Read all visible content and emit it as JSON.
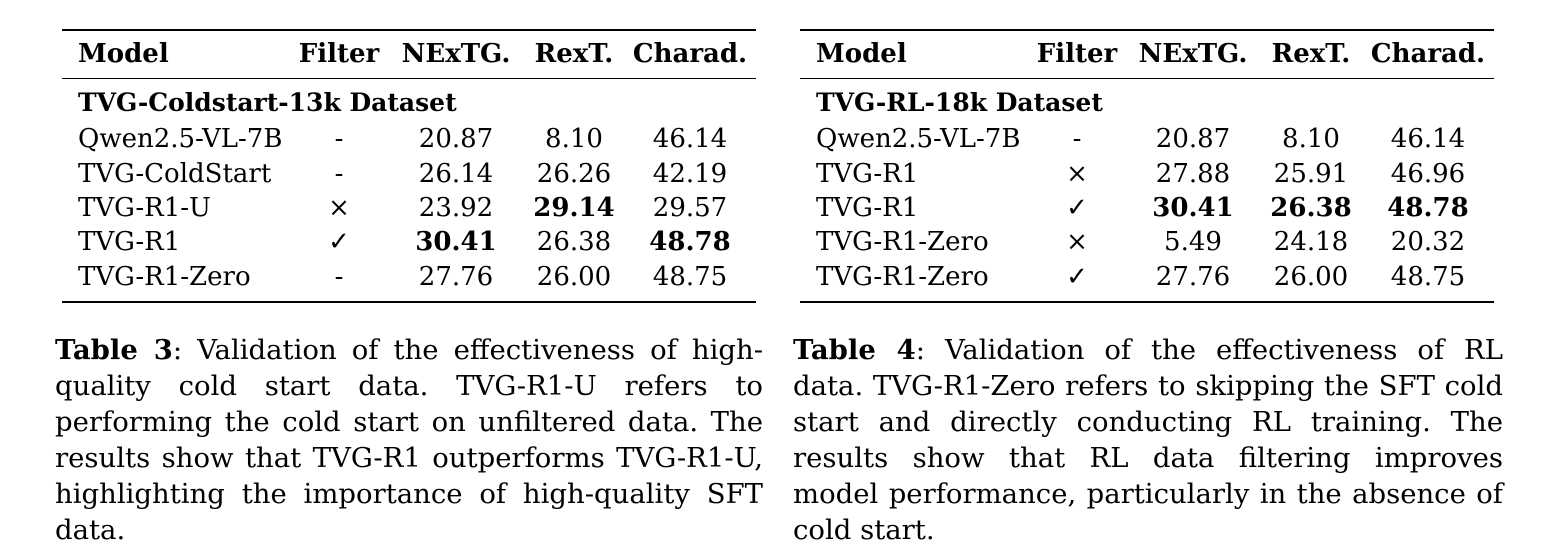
{
  "tables": [
    {
      "columns": [
        "Model",
        "Filter",
        "NExTG.",
        "RexT.",
        "Charad."
      ],
      "section": "TVG-Coldstart-13k Dataset",
      "rows": [
        {
          "model": "Qwen2.5-VL-7B",
          "filter": "-",
          "nextg": "20.87",
          "rext": "8.10",
          "charad": "46.14",
          "bold": []
        },
        {
          "model": "TVG-ColdStart",
          "filter": "-",
          "nextg": "26.14",
          "rext": "26.26",
          "charad": "42.19",
          "bold": []
        },
        {
          "model": "TVG-R1-U",
          "filter": "×",
          "nextg": "23.92",
          "rext": "29.14",
          "charad": "29.57",
          "bold": [
            "rext"
          ]
        },
        {
          "model": "TVG-R1",
          "filter": "✓",
          "nextg": "30.41",
          "rext": "26.38",
          "charad": "48.78",
          "bold": [
            "nextg",
            "charad"
          ]
        },
        {
          "model": "TVG-R1-Zero",
          "filter": "-",
          "nextg": "27.76",
          "rext": "26.00",
          "charad": "48.75",
          "bold": []
        }
      ],
      "caption_label": "Table 3",
      "caption_text": ": Validation of the effectiveness of high-quality cold start data. TVG-R1-U refers to performing the cold start on unfiltered data. The results show that TVG-R1 outperforms TVG-R1-U, highlighting the importance of high-quality SFT data."
    },
    {
      "columns": [
        "Model",
        "Filter",
        "NExTG.",
        "RexT.",
        "Charad."
      ],
      "section": "TVG-RL-18k Dataset",
      "rows": [
        {
          "model": "Qwen2.5-VL-7B",
          "filter": "-",
          "nextg": "20.87",
          "rext": "8.10",
          "charad": "46.14",
          "bold": []
        },
        {
          "model": "TVG-R1",
          "filter": "×",
          "nextg": "27.88",
          "rext": "25.91",
          "charad": "46.96",
          "bold": []
        },
        {
          "model": "TVG-R1",
          "filter": "✓",
          "nextg": "30.41",
          "rext": "26.38",
          "charad": "48.78",
          "bold": [
            "nextg",
            "rext",
            "charad"
          ]
        },
        {
          "model": "TVG-R1-Zero",
          "filter": "×",
          "nextg": "5.49",
          "rext": "24.18",
          "charad": "20.32",
          "bold": []
        },
        {
          "model": "TVG-R1-Zero",
          "filter": "✓",
          "nextg": "27.76",
          "rext": "26.00",
          "charad": "48.75",
          "bold": []
        }
      ],
      "caption_label": "Table 4",
      "caption_text": ":  Validation of the effectiveness of RL data. TVG-R1-Zero refers to skipping the SFT cold start and directly conducting RL training. The results show that RL data filtering improves model performance, particularly in the absence of cold start."
    }
  ]
}
